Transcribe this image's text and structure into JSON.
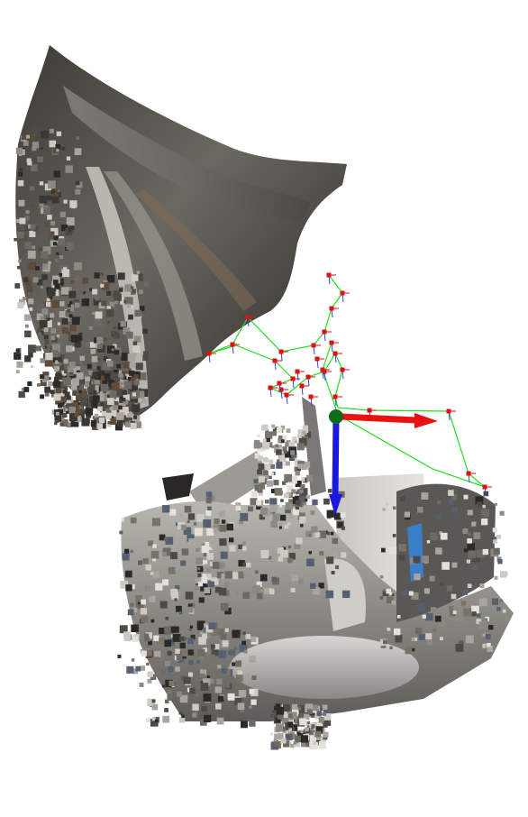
{
  "scene": {
    "type": "3d-point-cloud-visualization",
    "background": "#ffffff",
    "colors": {
      "trajectory": "#22dd22",
      "pose_marker": "#dd1111",
      "pose_stem": "#3344dd",
      "origin": "#0b6b1a",
      "x_axis": "#e81212",
      "z_axis": "#1a18e0",
      "ceiling_cloud": "#5a5a58",
      "floor_cloud": "#8a8a88"
    },
    "icons": {
      "origin": "green-sphere",
      "axis_x": "red-arrow",
      "axis_z": "blue-arrow",
      "camera_pose": "red-square-marker"
    }
  }
}
